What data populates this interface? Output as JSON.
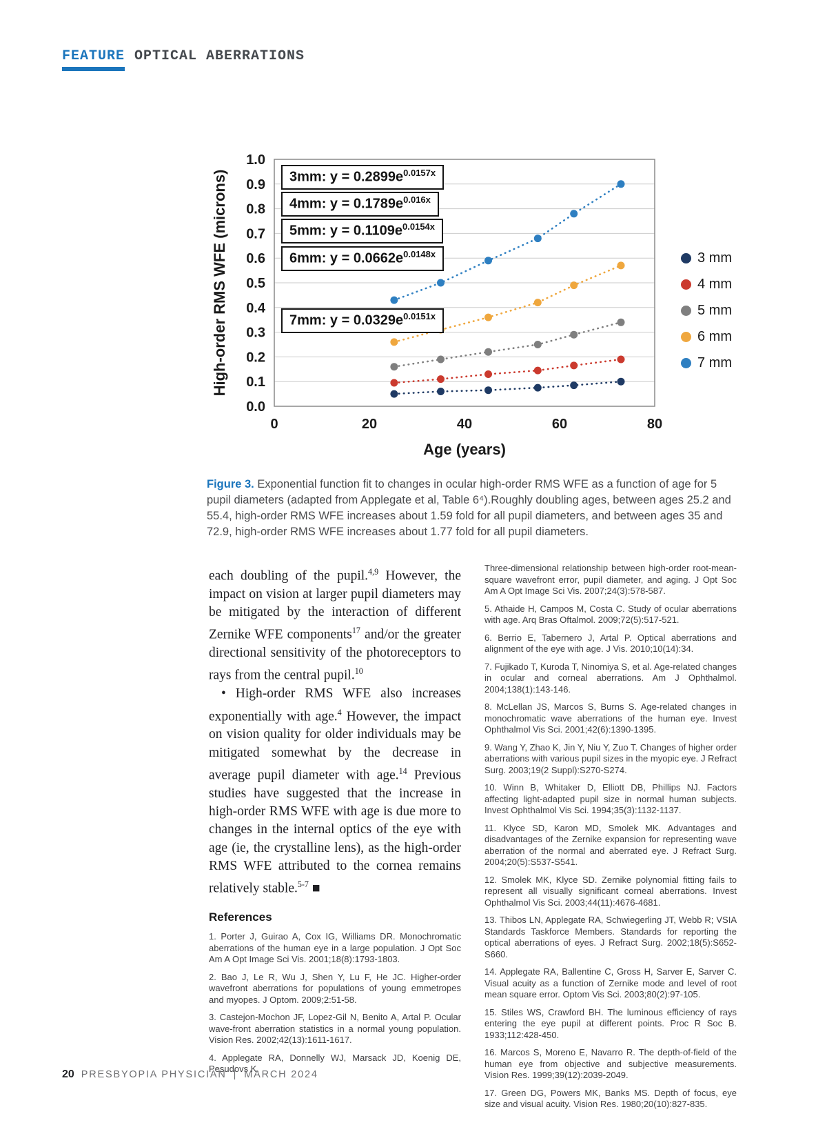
{
  "header": {
    "feature": "FEATURE",
    "topic": "OPTICAL ABERRATIONS"
  },
  "chart_data": {
    "type": "scatter",
    "title": "",
    "xlabel": "Age (years)",
    "ylabel": "High-order RMS WFE (microns)",
    "xlim": [
      0,
      80
    ],
    "ylim": [
      0,
      1.0
    ],
    "xticks": [
      0,
      20,
      40,
      60,
      80
    ],
    "yticks": [
      0,
      0.1,
      0.2,
      0.3,
      0.4,
      0.5,
      0.6,
      0.7,
      0.8,
      0.9,
      1.0
    ],
    "grid": "horizontal",
    "legend_position": "right",
    "x": [
      25.2,
      35,
      45,
      55.4,
      63,
      72.9
    ],
    "series": [
      {
        "name": "3 mm",
        "color": "#1f3a64",
        "values": [
          0.05,
          0.06,
          0.065,
          0.075,
          0.085,
          0.1
        ]
      },
      {
        "name": "4 mm",
        "color": "#cb3a2e",
        "values": [
          0.095,
          0.11,
          0.13,
          0.145,
          0.165,
          0.19
        ]
      },
      {
        "name": "5 mm",
        "color": "#7f7f7f",
        "values": [
          0.16,
          0.19,
          0.22,
          0.25,
          0.29,
          0.34
        ]
      },
      {
        "name": "6 mm",
        "color": "#efa73e",
        "values": [
          0.26,
          0.31,
          0.36,
          0.42,
          0.49,
          0.57
        ]
      },
      {
        "name": "7 mm",
        "color": "#2e7fc1",
        "values": [
          0.43,
          0.5,
          0.59,
          0.68,
          0.78,
          0.9
        ]
      }
    ],
    "equations": [
      {
        "prefix": "3mm: y = 0.2899e",
        "exponent": "0.0157x"
      },
      {
        "prefix": "4mm: y = 0.1789e",
        "exponent": "0.016x"
      },
      {
        "prefix": "5mm: y = 0.1109e",
        "exponent": "0.0154x"
      },
      {
        "prefix": "6mm: y = 0.0662e",
        "exponent": "0.0148x"
      },
      {
        "prefix": "7mm: y = 0.0329e",
        "exponent": "0.0151x"
      }
    ]
  },
  "figure_caption": {
    "label": "Figure 3.",
    "text": "Exponential function fit to changes in ocular high-order RMS WFE as a function of age for 5 pupil diameters (adapted from Applegate et al, Table 6⁴).Roughly doubling ages, between ages 25.2 and 55.4, high-order RMS WFE increases about 1.59 fold for all pupil diameters, and between ages 35 and 72.9, high-order RMS WFE increases about 1.77 fold for all pupil diameters."
  },
  "body": {
    "paragraphs": [
      {
        "bullet": false,
        "segments": [
          {
            "t": "each doubling of the pupil."
          },
          {
            "t": "4,9",
            "sup": true
          },
          {
            "t": " However, the impact on vision at larger pupil diameters may be mitigated by the interaction of different Zernike WFE components"
          },
          {
            "t": "17",
            "sup": true
          },
          {
            "t": " and/or the greater directional sensitivity of the photoreceptors to rays from the central pupil."
          },
          {
            "t": "10",
            "sup": true
          }
        ]
      },
      {
        "bullet": true,
        "segments": [
          {
            "t": "• High-order RMS WFE also increases exponentially with age."
          },
          {
            "t": "4",
            "sup": true
          },
          {
            "t": " However, the impact on vision quality for older individuals may be mitigated somewhat by the decrease in average pupil diameter with age."
          },
          {
            "t": "14",
            "sup": true
          },
          {
            "t": " Previous studies have suggested that the increase in high-order RMS WFE with age is due more to changes in the internal optics of the eye with age (ie, the crystalline lens), as the high-order RMS WFE attributed to the cornea remains relatively stable."
          },
          {
            "t": "5-7",
            "sup": true
          },
          {
            "t": " ■"
          }
        ]
      }
    ],
    "references_heading": "References",
    "references_left": [
      "1. Porter J, Guirao A, Cox IG, Williams DR. Monochromatic aberrations of the human eye in a large population. J Opt Soc Am A Opt Image Sci Vis. 2001;18(8):1793-1803.",
      "2. Bao J, Le R, Wu J, Shen Y, Lu F, He JC. Higher-order wavefront aberrations for populations of young emmetropes and myopes. J Optom. 2009;2:51-58.",
      "3. Castejon-Mochon JF, Lopez-Gil N, Benito A, Artal P. Ocular wave-front aberration statistics in a normal young population. Vision Res. 2002;42(13):1611-1617.",
      "4. Applegate RA, Donnelly WJ, Marsack JD, Koenig DE, Pesudovs K."
    ],
    "references_right": [
      "Three-dimensional relationship between high-order root-mean-square wavefront error, pupil diameter, and aging. J Opt Soc Am A Opt Image Sci Vis. 2007;24(3):578-587.",
      "5. Athaide H, Campos M, Costa C. Study of ocular aberrations with age. Arq Bras Oftalmol. 2009;72(5):517-521.",
      "6. Berrio E, Tabernero J, Artal P. Optical aberrations and alignment of the eye with age. J Vis. 2010;10(14):34.",
      "7. Fujikado T, Kuroda T, Ninomiya S, et al. Age-related changes in ocular and corneal aberrations. Am J Ophthalmol. 2004;138(1):143-146.",
      "8. McLellan JS, Marcos S, Burns S. Age-related changes in monochromatic wave aberrations of the human eye. Invest Ophthalmol Vis Sci. 2001;42(6):1390-1395.",
      "9. Wang Y, Zhao K, Jin Y, Niu Y, Zuo T. Changes of higher order aberrations with various pupil sizes in the myopic eye. J Refract Surg. 2003;19(2 Suppl):S270-S274.",
      "10. Winn B, Whitaker D, Elliott DB, Phillips NJ. Factors affecting light-adapted pupil size in normal human subjects. Invest Ophthalmol Vis Sci. 1994;35(3):1132-1137.",
      "11. Klyce SD, Karon MD, Smolek MK. Advantages and disadvantages of the Zernike expansion for representing wave aberration of the normal and aberrated eye. J Refract Surg. 2004;20(5):S537-S541.",
      "12. Smolek MK, Klyce SD. Zernike polynomial fitting fails to represent all visually significant corneal aberrations. Invest Ophthalmol Vis Sci. 2003;44(11):4676-4681.",
      "13. Thibos LN, Applegate RA, Schwiegerling JT, Webb R; VSIA Standards Taskforce Members. Standards for reporting the optical aberrations of eyes. J Refract Surg. 2002;18(5):S652-S660.",
      "14. Applegate RA, Ballentine C, Gross H, Sarver E, Sarver C. Visual acuity as a function of Zernike mode and level of root mean square error. Optom Vis Sci. 2003;80(2):97-105.",
      "15. Stiles WS, Crawford BH. The luminous efficiency of rays entering the eye pupil at different points. Proc R Soc B. 1933;112:428-450.",
      "16. Marcos S, Moreno E, Navarro R. The depth-of-field of the human eye from objective and subjective measurements. Vision Res. 1999;39(12):2039-2049.",
      "17. Green DG, Powers MK, Banks MS. Depth of focus, eye size and visual acuity. Vision Res. 1980;20(10):827-835."
    ]
  },
  "footer": {
    "page_number": "20",
    "journal": "PRESBYOPIA PHYSICIAN",
    "separator": "|",
    "issue": "MARCH 2024"
  }
}
